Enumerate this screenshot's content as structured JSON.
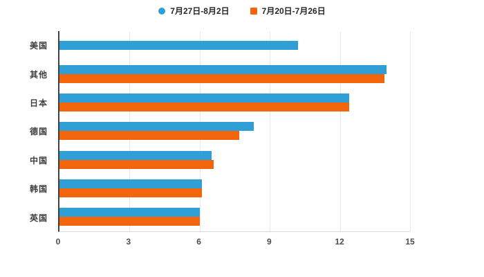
{
  "chart_data": {
    "type": "bar",
    "orientation": "horizontal",
    "title": "",
    "categories": [
      "美国",
      "其他",
      "日本",
      "德国",
      "中国",
      "韩国",
      "英国"
    ],
    "series": [
      {
        "name": "7月27日-8月2日",
        "color": "#2f9fd6",
        "marker": "circle",
        "values": [
          10.2,
          14.0,
          12.4,
          8.3,
          6.5,
          6.1,
          6.0
        ]
      },
      {
        "name": "7月20日-7月26日",
        "color": "#f3650c",
        "marker": "square",
        "values": [
          0,
          13.9,
          12.4,
          7.7,
          6.6,
          6.1,
          6.0
        ]
      }
    ],
    "xlim": [
      0,
      15
    ],
    "xticks": [
      0,
      3,
      6,
      9,
      12,
      15
    ],
    "grid": true,
    "legend_position": "top",
    "axis_color": "#404040",
    "gridline_color": "#e6e6e6",
    "background": "#ffffff"
  }
}
